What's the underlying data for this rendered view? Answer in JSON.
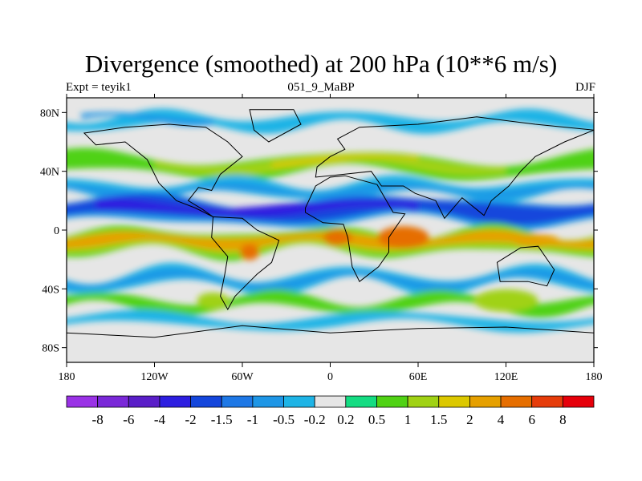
{
  "chart_data": {
    "type": "heatmap",
    "title": "Divergence (smoothed) at 200 hPa (10**6 m/s)",
    "subtitle_left": "Expt = teyik1",
    "subtitle_center": "051_9_MaBP",
    "subtitle_right": "DJF",
    "x_ticks": [
      "180",
      "120W",
      "60W",
      "0",
      "60E",
      "120E",
      "180"
    ],
    "y_ticks": [
      "80N",
      "40N",
      "0",
      "40S",
      "80S"
    ],
    "xlim": [
      -180,
      180
    ],
    "ylim": [
      -90,
      90
    ],
    "colorbar": {
      "labels": [
        "-8",
        "-6",
        "-4",
        "-2",
        "-1.5",
        "-1",
        "-0.5",
        "-0.2",
        "0.2",
        "0.5",
        "1",
        "1.5",
        "2",
        "4",
        "6",
        "8"
      ],
      "colors": [
        "#9a32e6",
        "#7a28d8",
        "#5a1ec8",
        "#2d1ee0",
        "#1446dc",
        "#1e78e6",
        "#1e96e6",
        "#1eb4e6",
        "#e6e6e6",
        "#14dc82",
        "#50d214",
        "#a0d214",
        "#dcc800",
        "#e6a000",
        "#e66e00",
        "#e63c0a",
        "#e6000a"
      ]
    },
    "bands": [
      {
        "name": "tropical-convergence-belt",
        "lat": 12,
        "value": -4
      },
      {
        "name": "equatorial-divergence-belt",
        "lat": -8,
        "value": 2
      },
      {
        "name": "nh-midlatitude-divergence",
        "lat": 42,
        "value": 1
      },
      {
        "name": "nh-subtropical-convergence",
        "lat": 25,
        "value": -1
      },
      {
        "name": "sh-midlatitude-convergence",
        "lat": -35,
        "value": -1
      },
      {
        "name": "sh-midlatitude-divergence",
        "lat": -50,
        "value": 0.5
      },
      {
        "name": "arctic-convergence",
        "lat": 72,
        "value": -0.5
      }
    ]
  }
}
